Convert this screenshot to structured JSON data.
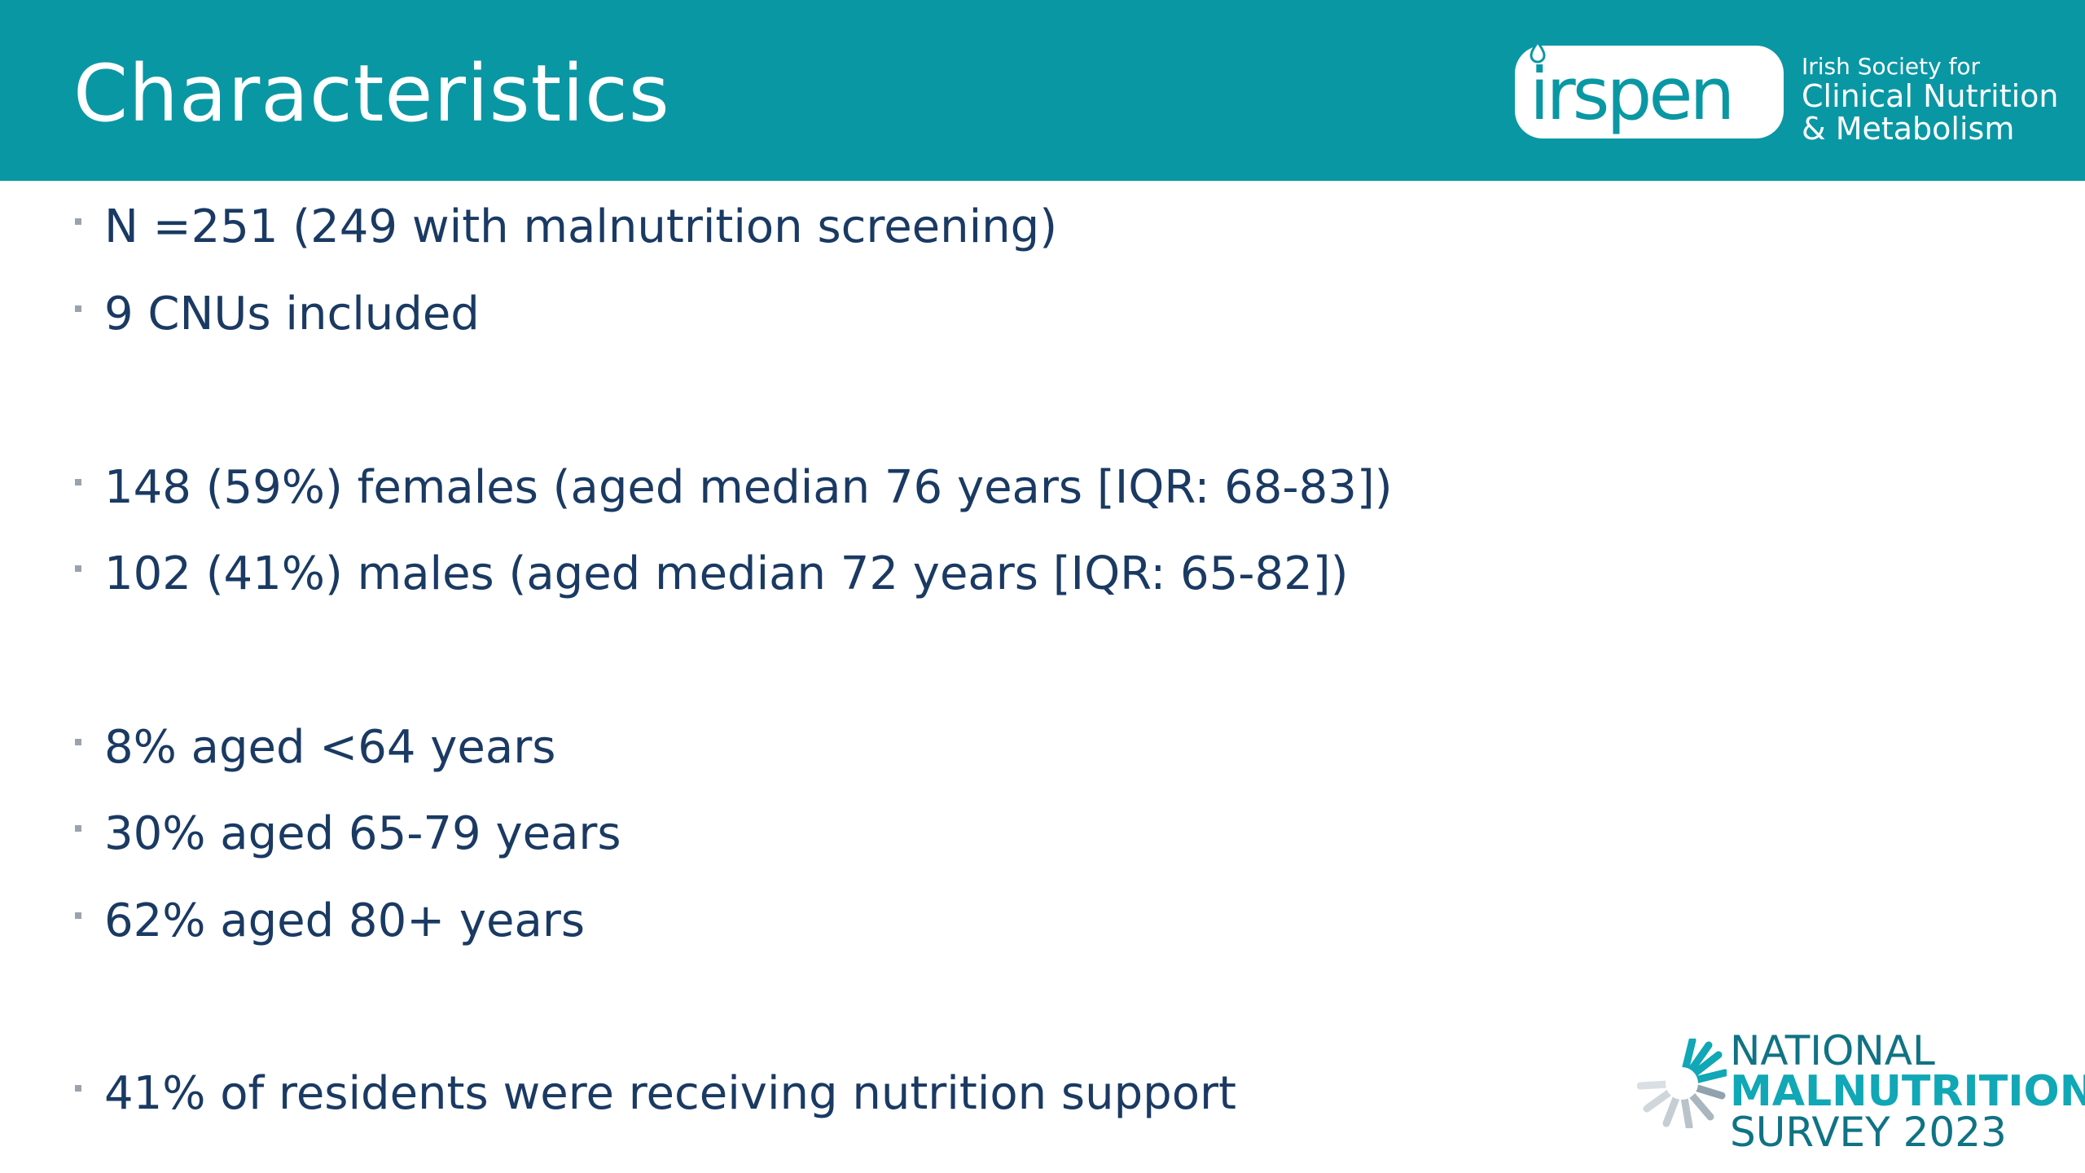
{
  "slide": {
    "title": "Characteristics",
    "colors": {
      "header_bg": "#0a97a4",
      "body_text": "#1a3a63",
      "bullet_marker": "#9aa3ad",
      "survey_accent": "#10a7b6"
    }
  },
  "logo": {
    "wordmark": "irspen",
    "line1": "Irish Society for",
    "line2": "Clinical Nutrition",
    "line3": "& Metabolism"
  },
  "bullets": [
    "N =251 (249 with malnutrition screening)",
    "9 CNUs included",
    "148 (59%) females (aged median 76 years [IQR: 68-83])",
    "102 (41%) males (aged median 72 years [IQR: 65-82])",
    "8% aged <64 years",
    "30% aged 65-79 years",
    "62% aged 80+ years",
    "41% of residents were receiving nutrition support"
  ],
  "survey_logo": {
    "line1": "NATIONAL",
    "line2": "MALNUTRITION",
    "line3": "SURVEY 2023",
    "icon": "sunburst-icon"
  }
}
